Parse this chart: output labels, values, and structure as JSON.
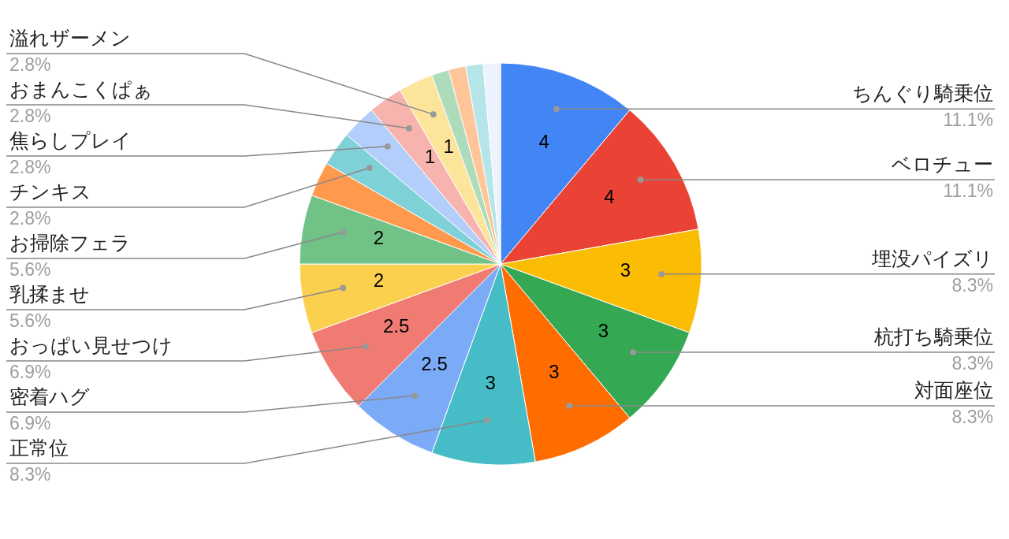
{
  "chart_data": {
    "type": "pie",
    "categories": [
      "ちんぐり騎乗位",
      "ベロチュー",
      "埋没パイズリ",
      "杭打ち騎乗位",
      "対面座位",
      "正常位",
      "密着ハグ",
      "おっぱい見せつけ",
      "乳揉ませ",
      "お掃除フェラ",
      null,
      "チンキス",
      "焦らしプレイ",
      "おまんこくぱぁ",
      "溢れザーメン",
      null,
      null,
      null,
      null
    ],
    "values": [
      4,
      4,
      3,
      3,
      3,
      3,
      2.5,
      2.5,
      2,
      2,
      1,
      1,
      1,
      1,
      1,
      0.5,
      0.5,
      0.5,
      0.5
    ],
    "value_labels": [
      "4",
      "4",
      "3",
      "3",
      "3",
      "3",
      "2.5",
      "2.5",
      "2",
      "2",
      null,
      null,
      null,
      "1",
      "1",
      null,
      null,
      null,
      null
    ],
    "colors": [
      "#4285f4",
      "#ea4335",
      "#fbbc04",
      "#34a853",
      "#ff6d01",
      "#46bdc6",
      "#7baaf7",
      "#f07b72",
      "#fcd04f",
      "#71c287",
      "#ff994d",
      "#7ed1d7",
      "#b3cefb",
      "#f7b4ae",
      "#fde49b",
      "#aedcba",
      "#ffc599",
      "#b5e5e8",
      "#ecf3fe"
    ],
    "annotations": [
      "11.1%",
      "11.1%",
      "8.3%",
      "8.3%",
      "8.3%",
      "8.3%",
      "6.9%",
      "6.9%",
      "5.6%",
      "5.6%",
      "2.8%",
      "2.8%",
      "2.8%",
      "2.8%"
    ]
  }
}
